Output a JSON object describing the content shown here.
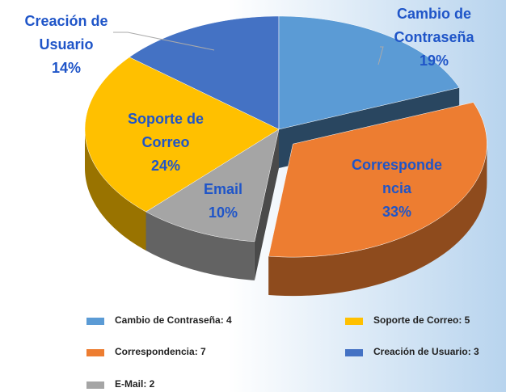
{
  "chart_data": {
    "type": "pie3d",
    "labels": [
      [
        "Cambio de",
        "Contraseña"
      ],
      [
        "Corresponde",
        "ncia"
      ],
      [
        "Email"
      ],
      [
        "Soporte de",
        "Correo"
      ],
      [
        "Creación de",
        "Usuario"
      ]
    ],
    "values": [
      19,
      33,
      10,
      24,
      14
    ],
    "value_labels": [
      "19%",
      "33%",
      "10%",
      "24%",
      "14%"
    ],
    "colors": [
      "#5b9bd5",
      "#ed7d31",
      "#a5a5a5",
      "#ffc000",
      "#4472c4"
    ],
    "legend": [
      "Cambio de Contraseña: 4",
      "Correspondencia: 7",
      "E-Mail: 2",
      "Soporte de Correo: 5",
      "Creación de Usuario: 3"
    ],
    "exploded": 1
  }
}
